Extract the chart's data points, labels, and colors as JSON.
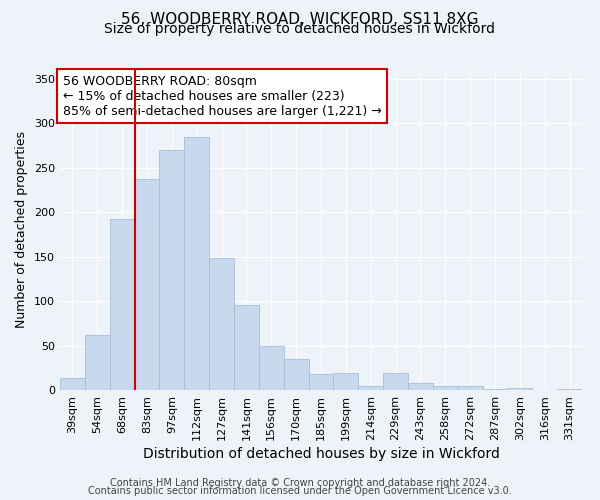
{
  "title": "56, WOODBERRY ROAD, WICKFORD, SS11 8XG",
  "subtitle": "Size of property relative to detached houses in Wickford",
  "xlabel": "Distribution of detached houses by size in Wickford",
  "ylabel": "Number of detached properties",
  "bar_labels": [
    "39sqm",
    "54sqm",
    "68sqm",
    "83sqm",
    "97sqm",
    "112sqm",
    "127sqm",
    "141sqm",
    "156sqm",
    "170sqm",
    "185sqm",
    "199sqm",
    "214sqm",
    "229sqm",
    "243sqm",
    "258sqm",
    "272sqm",
    "287sqm",
    "302sqm",
    "316sqm",
    "331sqm"
  ],
  "bar_values": [
    13,
    62,
    192,
    237,
    270,
    285,
    149,
    96,
    49,
    35,
    18,
    19,
    5,
    19,
    8,
    5,
    5,
    1,
    2,
    0,
    1
  ],
  "bar_color": "#c8d9ef",
  "bar_edge_color": "#a8bfd8",
  "vline_color": "#cc0000",
  "ylim": [
    0,
    360
  ],
  "yticks": [
    0,
    50,
    100,
    150,
    200,
    250,
    300,
    350
  ],
  "annotation_line1": "56 WOODBERRY ROAD: 80sqm",
  "annotation_line2": "← 15% of detached houses are smaller (223)",
  "annotation_line3": "85% of semi-detached houses are larger (1,221) →",
  "footer_line1": "Contains HM Land Registry data © Crown copyright and database right 2024.",
  "footer_line2": "Contains public sector information licensed under the Open Government Licence v3.0.",
  "background_color": "#eef2f9",
  "plot_bg_color": "#eef2f9",
  "grid_color": "#ffffff",
  "title_fontsize": 11,
  "subtitle_fontsize": 10,
  "xlabel_fontsize": 10,
  "ylabel_fontsize": 9,
  "tick_fontsize": 8,
  "annotation_fontsize": 9,
  "footer_fontsize": 7
}
